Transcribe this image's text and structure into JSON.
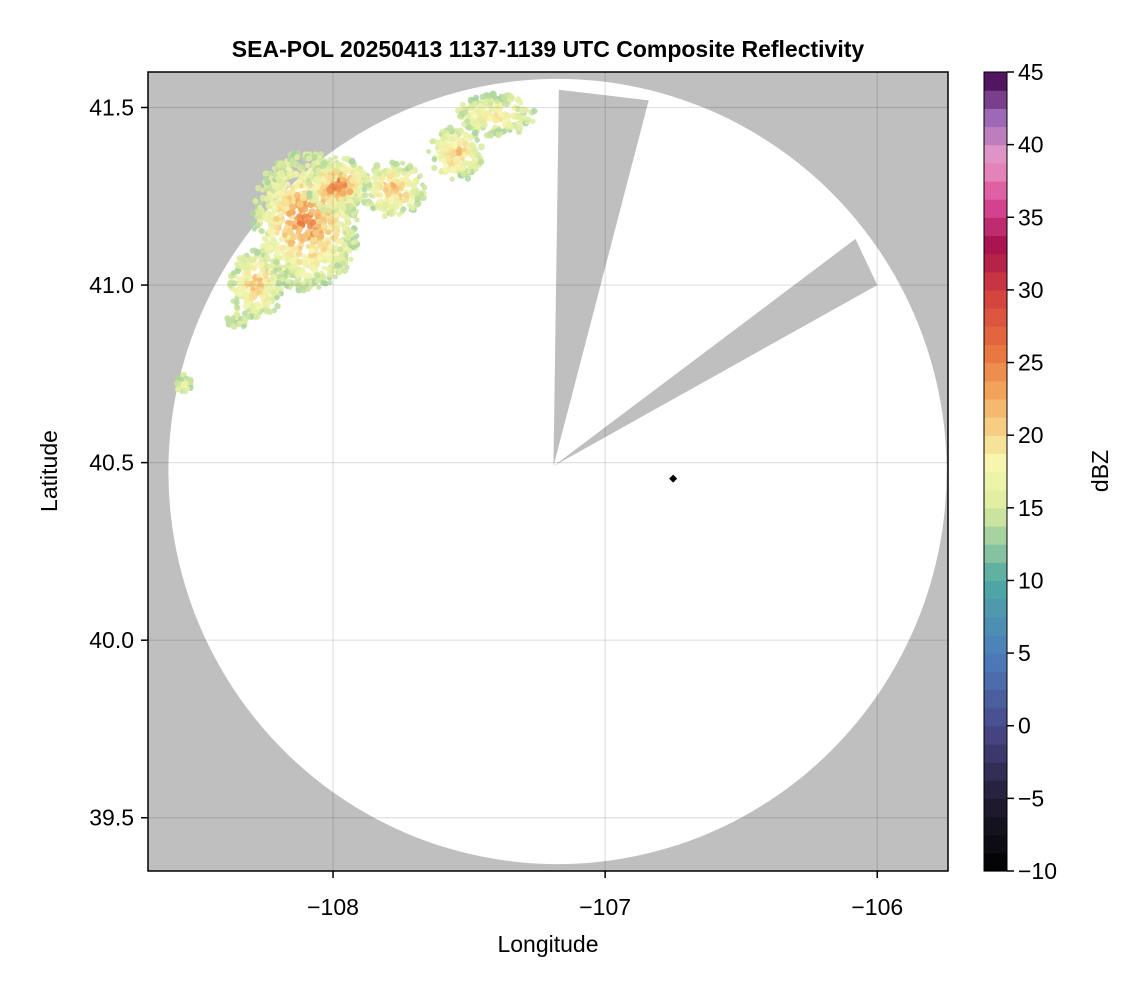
{
  "chart_data": {
    "type": "heatmap",
    "title": "SEA-POL 20250413 1137-1139 UTC Composite Reflectivity",
    "xlabel": "Longitude",
    "ylabel": "Latitude",
    "xlim": [
      -108.68,
      -105.74
    ],
    "ylim": [
      39.35,
      41.6
    ],
    "x_ticks": [
      {
        "value": -108,
        "label": "−108"
      },
      {
        "value": -107,
        "label": "−107"
      },
      {
        "value": -106,
        "label": "−106"
      }
    ],
    "y_ticks": [
      {
        "value": 39.5,
        "label": "39.5"
      },
      {
        "value": 40.0,
        "label": "40.0"
      },
      {
        "value": 40.5,
        "label": "40.5"
      },
      {
        "value": 41.0,
        "label": "41.0"
      },
      {
        "value": 41.5,
        "label": "41.5"
      }
    ],
    "grid": true,
    "background_color": "#bfbfbf",
    "coverage_color": "#ffffff",
    "radar": {
      "center_lon": -107.175,
      "center_lat": 40.475,
      "range_deg_lat": 1.105,
      "range_deg_lon": 1.43,
      "blocked_sector_1": {
        "apex_lon": -107.19,
        "apex_lat": 40.49,
        "edge_a": {
          "lon": -107.17,
          "lat": 41.55
        },
        "edge_b": {
          "lon": -106.84,
          "lat": 41.52
        }
      },
      "blocked_sector_2": {
        "apex_lon": -107.19,
        "apex_lat": 40.49,
        "edge_a": {
          "lon": -106.08,
          "lat": 41.13
        },
        "edge_b": {
          "lon": -106.0,
          "lat": 41.0
        }
      }
    },
    "marker": {
      "lon": -106.75,
      "lat": 40.455,
      "shape": "diamond",
      "color": "#000000"
    },
    "colorbar": {
      "label": "dBZ",
      "min": -10,
      "max": 45,
      "ticks": [
        -10,
        -5,
        0,
        5,
        10,
        15,
        20,
        25,
        30,
        35,
        40,
        45
      ],
      "tick_labels": [
        "−10",
        "−5",
        "0",
        "5",
        "10",
        "15",
        "20",
        "25",
        "30",
        "35",
        "40",
        "45"
      ],
      "levels": 44,
      "colormap": [
        {
          "v": -10,
          "c": "#000000"
        },
        {
          "v": -5,
          "c": "#221c33"
        },
        {
          "v": 0,
          "c": "#4a4a8c"
        },
        {
          "v": 5,
          "c": "#4c7fbd"
        },
        {
          "v": 10,
          "c": "#4fa9a2"
        },
        {
          "v": 15,
          "c": "#dcec9e"
        },
        {
          "v": 18,
          "c": "#f7f7b0"
        },
        {
          "v": 20,
          "c": "#f7d98e"
        },
        {
          "v": 23,
          "c": "#f2a55a"
        },
        {
          "v": 26,
          "c": "#e8703f"
        },
        {
          "v": 30,
          "c": "#d13d3d"
        },
        {
          "v": 33,
          "c": "#a8124e"
        },
        {
          "v": 36,
          "c": "#d94a96"
        },
        {
          "v": 39,
          "c": "#e99ac7"
        },
        {
          "v": 42,
          "c": "#9a67b5"
        },
        {
          "v": 45,
          "c": "#3f0048"
        }
      ]
    },
    "echoes": [
      {
        "lon": -108.1,
        "lat": 41.18,
        "rlon": 0.2,
        "rlat": 0.2,
        "peak": 27
      },
      {
        "lon": -107.98,
        "lat": 41.28,
        "rlon": 0.12,
        "rlat": 0.08,
        "peak": 28
      },
      {
        "lon": -108.28,
        "lat": 41.0,
        "rlon": 0.1,
        "rlat": 0.1,
        "peak": 24
      },
      {
        "lon": -107.78,
        "lat": 41.27,
        "rlon": 0.12,
        "rlat": 0.08,
        "peak": 25
      },
      {
        "lon": -107.55,
        "lat": 41.37,
        "rlon": 0.1,
        "rlat": 0.08,
        "peak": 24
      },
      {
        "lon": -107.4,
        "lat": 41.48,
        "rlon": 0.15,
        "rlat": 0.06,
        "peak": 22
      },
      {
        "lon": -108.35,
        "lat": 40.9,
        "rlon": 0.04,
        "rlat": 0.02,
        "peak": 17
      },
      {
        "lon": -108.55,
        "lat": 40.72,
        "rlon": 0.03,
        "rlat": 0.03,
        "peak": 19
      }
    ]
  }
}
